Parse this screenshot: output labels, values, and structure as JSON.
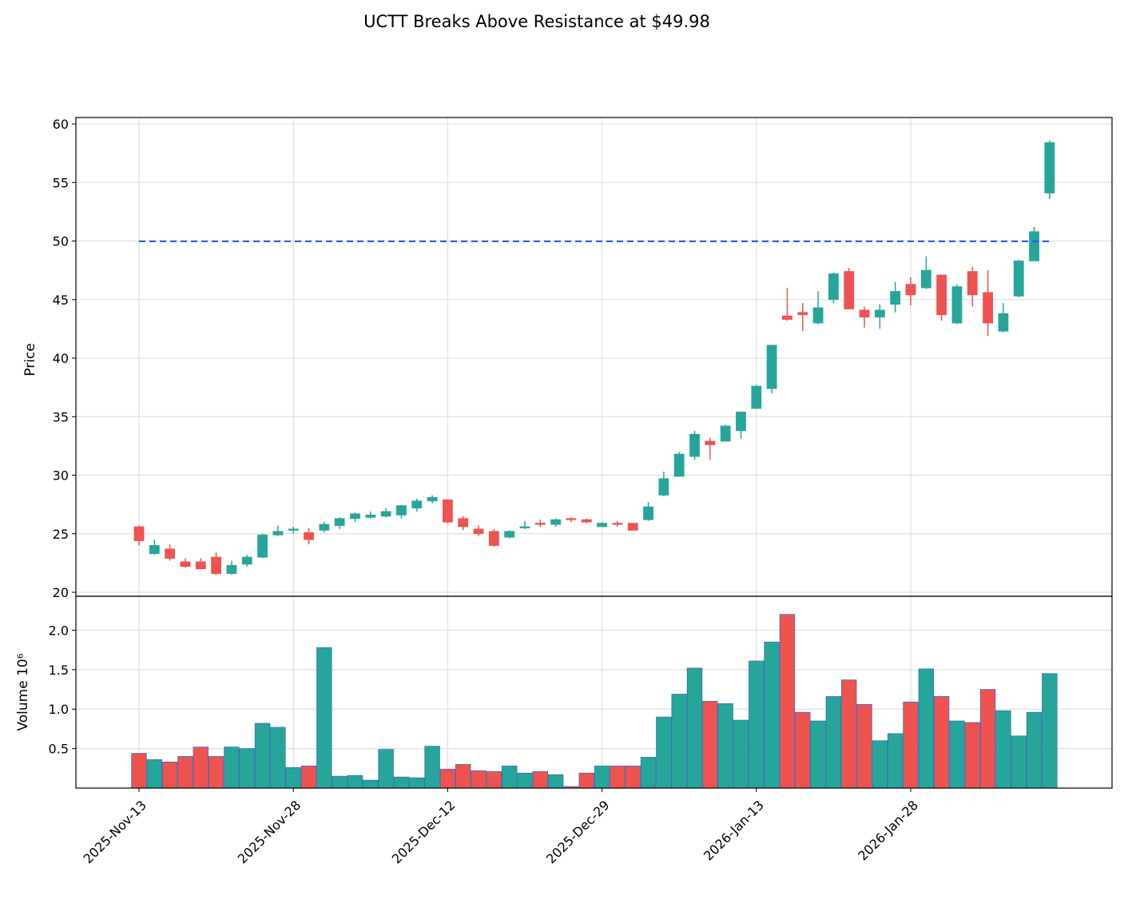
{
  "chart_data": {
    "type": "candlestick",
    "title": "UCTT Breaks Above Resistance at $49.98",
    "ylabel": "Price",
    "volume_label": "Volume  10⁶",
    "categories": [
      "2025-Nov-13",
      null,
      null,
      null,
      null,
      null,
      null,
      null,
      null,
      null,
      "2025-Nov-28",
      null,
      null,
      null,
      null,
      null,
      null,
      null,
      null,
      null,
      "2025-Dec-12",
      null,
      null,
      null,
      null,
      null,
      null,
      null,
      null,
      null,
      "2025-Dec-29",
      null,
      null,
      null,
      null,
      null,
      null,
      null,
      null,
      null,
      "2026-Jan-13",
      null,
      null,
      null,
      null,
      null,
      null,
      null,
      null,
      null,
      "2026-Jan-28",
      null,
      null,
      null,
      null,
      null,
      null,
      null,
      null,
      null
    ],
    "open": [
      25.6,
      23.3,
      23.7,
      22.6,
      22.6,
      23.0,
      21.6,
      22.4,
      23.0,
      24.9,
      25.3,
      25.1,
      25.3,
      25.7,
      26.3,
      26.4,
      26.5,
      26.6,
      27.2,
      27.8,
      27.9,
      26.3,
      25.4,
      25.2,
      24.7,
      25.5,
      25.9,
      25.8,
      26.3,
      26.2,
      25.6,
      25.9,
      25.9,
      26.2,
      28.3,
      29.9,
      31.6,
      32.9,
      32.9,
      33.8,
      35.7,
      37.4,
      43.6,
      43.9,
      43.0,
      45.0,
      47.4,
      44.1,
      43.5,
      44.6,
      46.3,
      46.0,
      47.1,
      43.0,
      47.4,
      45.6,
      42.3,
      45.3,
      48.3,
      54.1
    ],
    "high": [
      25.7,
      24.5,
      24.1,
      22.9,
      22.9,
      23.4,
      22.7,
      23.2,
      25.0,
      25.7,
      25.6,
      25.5,
      26.0,
      26.4,
      26.8,
      26.9,
      27.2,
      27.4,
      28.0,
      28.3,
      27.9,
      26.5,
      25.7,
      25.4,
      25.3,
      26.1,
      26.2,
      26.3,
      26.4,
      26.3,
      26.0,
      26.1,
      25.9,
      27.7,
      30.3,
      32.0,
      33.8,
      33.2,
      34.3,
      35.4,
      37.7,
      41.1,
      46.0,
      44.7,
      45.7,
      47.3,
      47.7,
      44.4,
      44.6,
      46.5,
      46.9,
      48.7,
      47.1,
      46.3,
      47.8,
      47.5,
      44.7,
      48.4,
      51.2,
      58.6
    ],
    "low": [
      24.0,
      23.2,
      22.7,
      22.1,
      22.0,
      21.5,
      21.5,
      22.2,
      22.9,
      24.8,
      25.0,
      24.1,
      25.1,
      25.4,
      26.0,
      26.3,
      26.4,
      26.3,
      26.9,
      27.6,
      25.9,
      25.3,
      24.8,
      23.9,
      24.6,
      25.4,
      25.6,
      25.6,
      26.0,
      25.9,
      25.6,
      25.6,
      25.3,
      26.1,
      28.2,
      29.9,
      31.3,
      31.3,
      32.9,
      33.1,
      35.7,
      37.0,
      43.2,
      42.3,
      42.9,
      44.7,
      44.2,
      42.6,
      42.5,
      43.9,
      44.5,
      45.9,
      43.2,
      42.9,
      44.4,
      41.9,
      42.2,
      45.2,
      48.3,
      53.6
    ],
    "close": [
      24.4,
      24.0,
      22.9,
      22.2,
      22.0,
      21.6,
      22.3,
      23.0,
      24.9,
      25.2,
      25.4,
      24.5,
      25.8,
      26.3,
      26.7,
      26.6,
      26.9,
      27.4,
      27.8,
      28.1,
      26.0,
      25.6,
      25.0,
      24.0,
      25.2,
      25.6,
      25.8,
      26.2,
      26.2,
      26.0,
      25.9,
      25.8,
      25.3,
      27.3,
      29.7,
      31.8,
      33.5,
      32.6,
      34.2,
      35.4,
      37.6,
      41.1,
      43.3,
      43.7,
      44.3,
      47.2,
      44.2,
      43.5,
      44.1,
      45.7,
      45.4,
      47.5,
      43.7,
      46.1,
      45.4,
      43.0,
      43.8,
      48.3,
      50.8,
      58.4
    ],
    "volume": [
      0.44,
      0.36,
      0.33,
      0.4,
      0.52,
      0.4,
      0.52,
      0.5,
      0.82,
      0.77,
      0.26,
      0.28,
      1.78,
      0.15,
      0.16,
      0.1,
      0.49,
      0.14,
      0.13,
      0.53,
      0.24,
      0.3,
      0.22,
      0.21,
      0.28,
      0.19,
      0.21,
      0.17,
      0.02,
      0.19,
      0.28,
      0.28,
      0.28,
      0.39,
      0.9,
      1.19,
      1.52,
      1.1,
      1.07,
      0.86,
      1.61,
      1.85,
      2.2,
      0.96,
      0.85,
      1.16,
      1.37,
      1.06,
      0.6,
      0.69,
      1.09,
      1.51,
      1.16,
      0.85,
      0.83,
      1.25,
      0.98,
      0.66,
      0.96,
      1.45
    ],
    "resistance": 49.98,
    "up_color": "#26a69a",
    "down_color": "#ef5350",
    "resistance_color": "#2962e8",
    "ylim": [
      19.66,
      60.55
    ],
    "yticks": [
      20,
      25,
      30,
      35,
      40,
      45,
      50,
      55,
      60
    ],
    "volume_ylim": [
      0,
      2.43
    ],
    "volume_yticks": [
      0.5,
      {
        "value": 1,
        "label": "1.0"
      },
      1.5,
      {
        "value": 2,
        "label": "2.0"
      }
    ],
    "grid": true
  }
}
